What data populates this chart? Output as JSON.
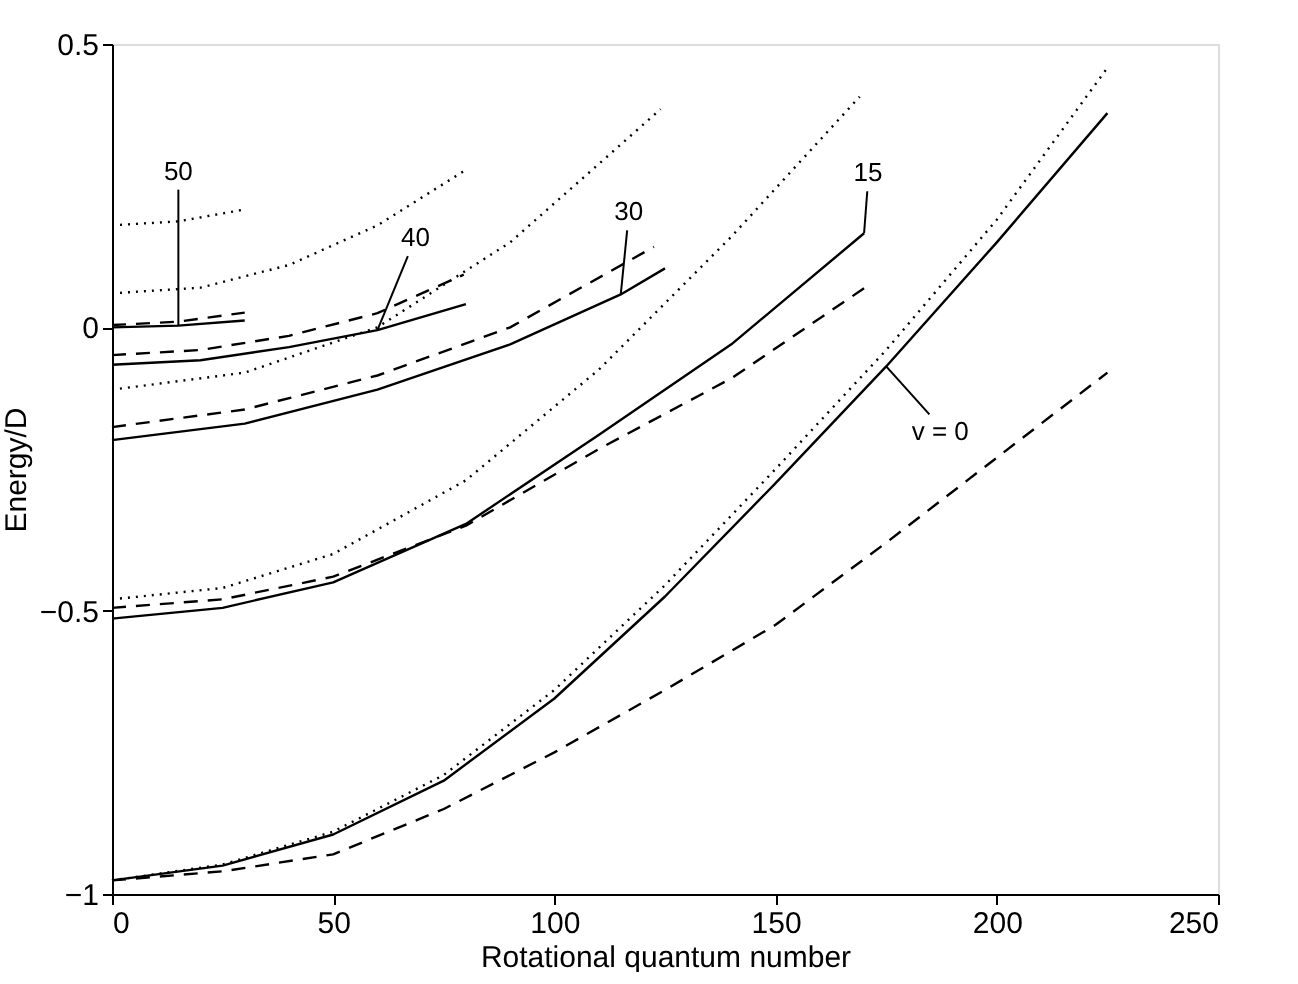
{
  "chart_data": {
    "type": "line",
    "xlabel": "Rotational quantum number",
    "ylabel": "Energy/D",
    "xlim": [
      0,
      250
    ],
    "xticks": [
      0,
      50,
      100,
      150,
      200,
      250
    ],
    "ylim": [
      -1,
      0.5
    ],
    "yticks": [
      -1,
      -0.5,
      0,
      0.5
    ],
    "grid": false,
    "legend": false,
    "marker": "none",
    "series": [
      {
        "color": "#000000",
        "line_style": "solid",
        "x": [
          0,
          25,
          50,
          75,
          100,
          125,
          150,
          175,
          200,
          225
        ],
        "values": [
          -0.976,
          -0.95,
          -0.895,
          -0.8,
          -0.655,
          -0.475,
          -0.275,
          -0.069,
          0.15,
          0.378
        ]
      },
      {
        "color": "#000000",
        "line_style": "dotted",
        "x": [
          0,
          25,
          50,
          75,
          100,
          125,
          150,
          175,
          200,
          225
        ],
        "values": [
          -0.976,
          -0.948,
          -0.89,
          -0.79,
          -0.64,
          -0.455,
          -0.25,
          -0.04,
          0.19,
          0.458
        ]
      },
      {
        "color": "#000000",
        "line_style": "dashed",
        "x": [
          0,
          25,
          50,
          75,
          100,
          125,
          150,
          175,
          200,
          225
        ],
        "values": [
          -0.976,
          -0.96,
          -0.93,
          -0.85,
          -0.75,
          -0.64,
          -0.525,
          -0.38,
          -0.23,
          -0.08
        ]
      },
      {
        "color": "#000000",
        "line_style": "solid",
        "x": [
          0,
          25,
          50,
          80,
          110,
          140,
          170
        ],
        "values": [
          -0.514,
          -0.495,
          -0.45,
          -0.347,
          -0.19,
          -0.03,
          0.166
        ]
      },
      {
        "color": "#000000",
        "line_style": "dashed",
        "x": [
          0,
          25,
          50,
          80,
          110,
          140,
          170
        ],
        "values": [
          -0.495,
          -0.48,
          -0.44,
          -0.35,
          -0.215,
          -0.09,
          0.069
        ]
      },
      {
        "color": "#000000",
        "line_style": "dotted",
        "x": [
          0,
          25,
          50,
          80,
          110,
          140,
          169
        ],
        "values": [
          -0.48,
          -0.46,
          -0.4,
          -0.27,
          -0.075,
          0.16,
          0.407
        ]
      },
      {
        "color": "#000000",
        "line_style": "solid",
        "x": [
          0,
          30,
          60,
          90,
          115,
          125
        ],
        "values": [
          -0.199,
          -0.17,
          -0.11,
          -0.03,
          0.058,
          0.104
        ]
      },
      {
        "color": "#000000",
        "line_style": "dashed",
        "x": [
          0,
          30,
          60,
          90,
          122.5
        ],
        "values": [
          -0.176,
          -0.145,
          -0.085,
          0.0,
          0.142
        ]
      },
      {
        "color": "#000000",
        "line_style": "dotted",
        "x": [
          0,
          30,
          60,
          90,
          110,
          124
        ],
        "values": [
          -0.11,
          -0.08,
          0.0,
          0.15,
          0.288,
          0.385
        ]
      },
      {
        "color": "#000000",
        "line_style": "solid",
        "x": [
          0,
          20,
          40,
          60,
          80
        ],
        "values": [
          -0.066,
          -0.058,
          -0.035,
          -0.005,
          0.041
        ]
      },
      {
        "color": "#000000",
        "line_style": "dashed",
        "x": [
          0,
          20,
          40,
          60,
          79.5
        ],
        "values": [
          -0.049,
          -0.04,
          -0.015,
          0.025,
          0.093
        ]
      },
      {
        "color": "#000000",
        "line_style": "dotted",
        "x": [
          0,
          20,
          40,
          60,
          80
        ],
        "values": [
          0.06,
          0.07,
          0.11,
          0.18,
          0.278
        ]
      },
      {
        "color": "#000000",
        "line_style": "solid",
        "x": [
          0,
          15,
          30
        ],
        "values": [
          0.0,
          0.003,
          0.012
        ]
      },
      {
        "color": "#000000",
        "line_style": "dashed",
        "x": [
          0,
          15,
          30
        ],
        "values": [
          0.004,
          0.01,
          0.026
        ]
      },
      {
        "color": "#000000",
        "line_style": "dotted",
        "x": [
          0,
          15,
          30
        ],
        "values": [
          0.18,
          0.187,
          0.208
        ]
      }
    ],
    "annotations": [
      {
        "text": "50",
        "x": 15,
        "y": 0.003
      },
      {
        "text": "40",
        "x": 60,
        "y": -0.005
      },
      {
        "text": "30",
        "x": 115,
        "y": 0.058
      },
      {
        "text": "15",
        "x": 170,
        "y": 0.166
      },
      {
        "text": "v = 0",
        "x": 175,
        "y": -0.069
      }
    ]
  }
}
